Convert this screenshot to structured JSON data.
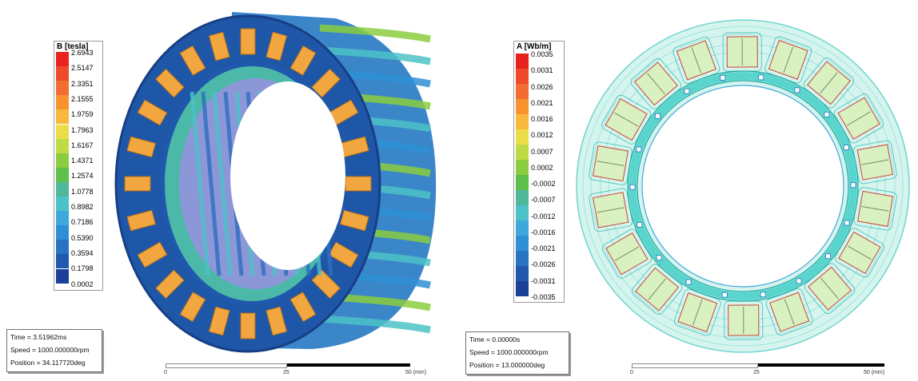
{
  "left": {
    "legend": {
      "title": "B [tesla]",
      "labels": [
        "2.6943",
        "2.5147",
        "2.3351",
        "2.1555",
        "1.9759",
        "1.7963",
        "1.6167",
        "1.4371",
        "1.2574",
        "1.0778",
        "0.8982",
        "0.7186",
        "0.5390",
        "0.3594",
        "0.1798",
        "0.0002"
      ],
      "colors": [
        "#e8231f",
        "#ee4a2a",
        "#f36d32",
        "#f7922f",
        "#f7b83c",
        "#eadd48",
        "#bedb46",
        "#8ccc40",
        "#5ebf4a",
        "#4fb89a",
        "#4cc2c8",
        "#3ea8dc",
        "#2f8fd4",
        "#2773c2",
        "#1f58ad",
        "#1c3f97"
      ]
    },
    "info": {
      "time": "Time     = 3.51962ms",
      "speed": "Speed    = 1000.000000rpm",
      "position": "Position = 34.117720deg"
    },
    "scale": {
      "ticks": [
        "0",
        "25",
        "50 (mm)"
      ]
    }
  },
  "right": {
    "legend": {
      "title": "A [Wb/m]",
      "labels": [
        "0.0035",
        "0.0031",
        "0.0026",
        "0.0021",
        "0.0016",
        "0.0012",
        "0.0007",
        "0.0002",
        "-0.0002",
        "-0.0007",
        "-0.0012",
        "-0.0016",
        "-0.0021",
        "-0.0026",
        "-0.0031",
        "-0.0035"
      ],
      "colors": [
        "#e8231f",
        "#ee4a2a",
        "#f36d32",
        "#f7922f",
        "#f7b83c",
        "#eadd48",
        "#bedb46",
        "#8ccc40",
        "#5ebf4a",
        "#4fb89a",
        "#4cc2c8",
        "#3ea8dc",
        "#2f8fd4",
        "#2773c2",
        "#1f58ad",
        "#1c3f97"
      ]
    },
    "info": {
      "time": "Time     = 0.00000s",
      "speed": "Speed    = 1000.000000rpm",
      "position": "Position = 13.000000deg"
    },
    "scale": {
      "ticks": [
        "0",
        "25",
        "50 (mm)"
      ]
    }
  },
  "colors": {
    "core_blue": "#1f57a8",
    "core_dark": "#173f86",
    "coil_orange": "#f2a640",
    "coil_edge": "#b06f1c",
    "flux_fill": "#d6f4ee",
    "coil_green": "#d9f0c0",
    "flux_line": "#25c7c0"
  }
}
